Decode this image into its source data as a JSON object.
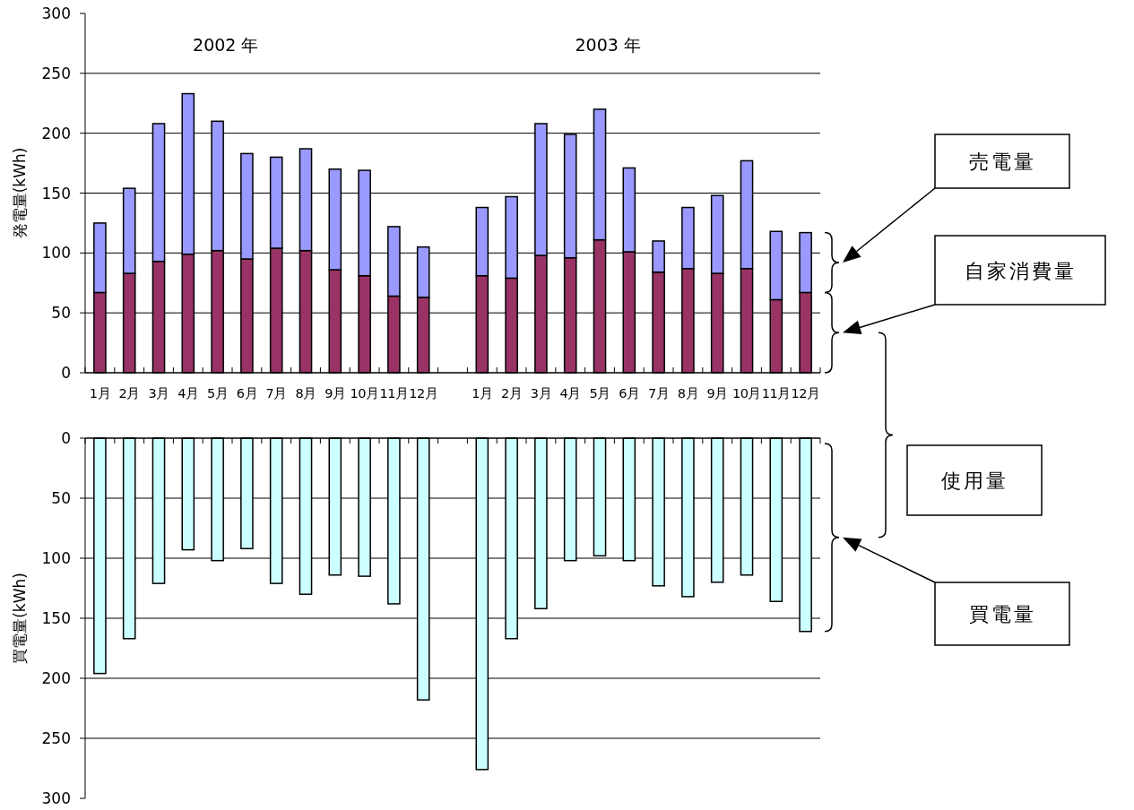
{
  "chart_data": [
    {
      "type": "bar",
      "stacked": true,
      "ylabel": "発電量(kWh)",
      "annotations": [
        "2002 年",
        "2003 年"
      ],
      "categories": [
        "1月",
        "2月",
        "3月",
        "4月",
        "5月",
        "6月",
        "7月",
        "8月",
        "9月",
        "10月",
        "11月",
        "12月",
        null,
        "1月",
        "2月",
        "3月",
        "4月",
        "5月",
        "6月",
        "7月",
        "8月",
        "9月",
        "10月",
        "11月",
        "12月"
      ],
      "series": [
        {
          "name": "自家消費量",
          "color": "#993366",
          "values": [
            67,
            83,
            93,
            99,
            102,
            95,
            104,
            102,
            86,
            81,
            64,
            63,
            null,
            81,
            79,
            98,
            96,
            111,
            101,
            84,
            87,
            83,
            87,
            61,
            67
          ]
        },
        {
          "name": "売電量",
          "color": "#9999ff",
          "values": [
            58,
            71,
            115,
            134,
            108,
            88,
            76,
            85,
            84,
            88,
            58,
            42,
            null,
            57,
            68,
            110,
            103,
            109,
            70,
            26,
            51,
            65,
            90,
            57,
            50
          ]
        }
      ],
      "ylim": [
        0,
        300
      ],
      "yticks": [
        0,
        50,
        100,
        150,
        200,
        250,
        300
      ],
      "grid": "y"
    },
    {
      "type": "bar",
      "ylabel": "買電量(kWh)",
      "annotations": [
        "使用量"
      ],
      "categories": [
        null,
        null,
        null,
        null,
        null,
        null,
        null,
        null,
        null,
        null,
        null,
        null,
        null,
        null,
        null,
        null,
        null,
        null,
        null,
        null,
        null,
        null,
        null,
        null,
        null
      ],
      "series": [
        {
          "name": "買電量",
          "color": "#ccffff",
          "values": [
            196,
            167,
            121,
            93,
            102,
            92,
            121,
            130,
            114,
            115,
            138,
            218,
            null,
            276,
            167,
            142,
            102,
            98,
            102,
            123,
            132,
            120,
            114,
            136,
            161
          ]
        }
      ],
      "ylim": [
        300,
        0
      ],
      "yticks": [
        0,
        50,
        100,
        150,
        200,
        250,
        300
      ],
      "grid": "y"
    }
  ]
}
